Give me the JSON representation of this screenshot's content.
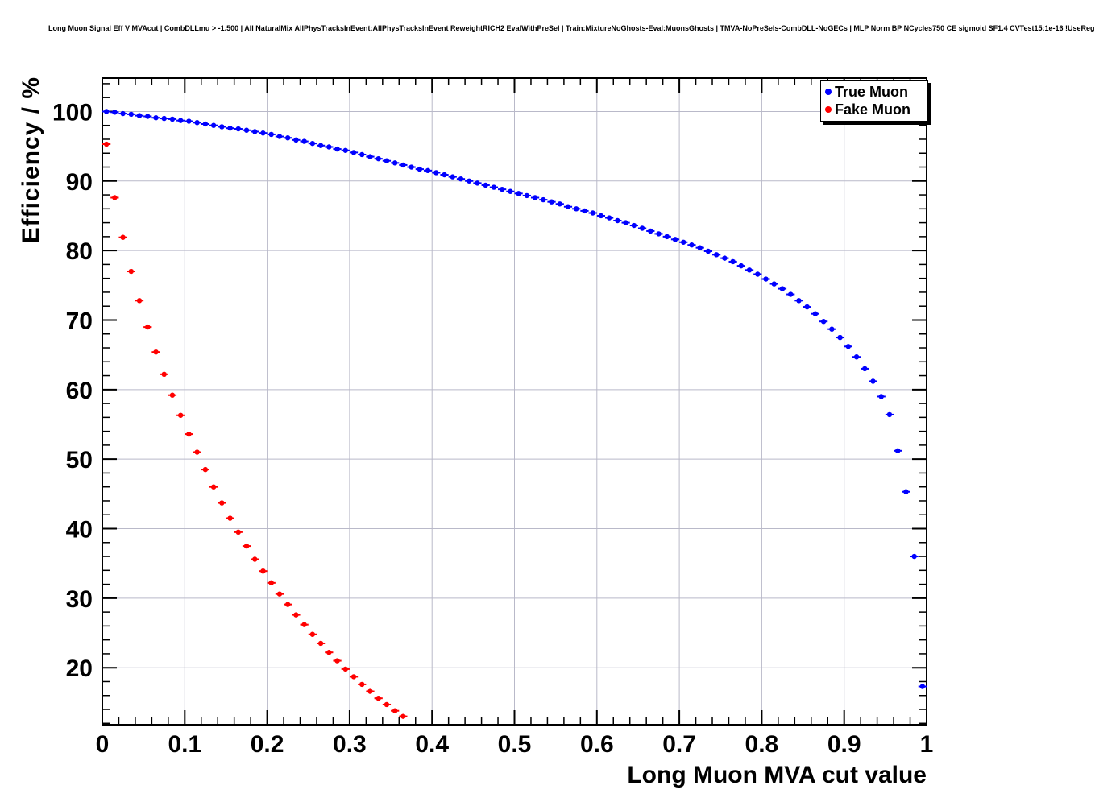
{
  "title": "Long Muon Signal Eff V MVAcut | CombDLLmu > -1.500 | All NaturalMix AllPhysTracksInEvent:AllPhysTracksInEvent ReweightRICH2 EvalWithPreSel | Train:MixtureNoGhosts-Eval:MuonsGhosts | TMVA-NoPreSels-CombDLL-NoGECs | MLP Norm BP NCycles750 CE sigmoid SF1.4 CVTest15:1e-16 !UseReg",
  "chart_data": {
    "type": "scatter",
    "title": "Long Muon Signal Eff V MVAcut",
    "xlabel": "Long Muon MVA cut value",
    "ylabel": "Efficiency / %",
    "xlim": [
      0,
      1
    ],
    "ylim": [
      11.8,
      104.8
    ],
    "grid": true,
    "x_ticks": [
      0,
      0.1,
      0.2,
      0.3,
      0.4,
      0.5,
      0.6,
      0.7,
      0.8,
      0.9,
      1
    ],
    "x_tick_labels": [
      "0",
      "0.1",
      "0.2",
      "0.3",
      "0.4",
      "0.5",
      "0.6",
      "0.7",
      "0.8",
      "0.9",
      "1"
    ],
    "y_ticks": [
      20,
      30,
      40,
      50,
      60,
      70,
      80,
      90,
      100
    ],
    "y_tick_labels": [
      "20",
      "30",
      "40",
      "50",
      "60",
      "70",
      "80",
      "90",
      "100"
    ],
    "x_minor_step": 0.02,
    "y_minor_step": 2,
    "legend": {
      "position": "top-right",
      "entries": [
        {
          "label": "True Muon",
          "color": "#0000ff"
        },
        {
          "label": "Fake Muon",
          "color": "#ff0000"
        }
      ]
    },
    "series": [
      {
        "name": "True Muon",
        "color": "#0000ff",
        "x_half_bin": 0.005,
        "x": [
          0.005,
          0.015,
          0.025,
          0.035,
          0.045,
          0.055,
          0.065,
          0.075,
          0.085,
          0.095,
          0.105,
          0.115,
          0.125,
          0.135,
          0.145,
          0.155,
          0.165,
          0.175,
          0.185,
          0.195,
          0.205,
          0.215,
          0.225,
          0.235,
          0.245,
          0.255,
          0.265,
          0.275,
          0.285,
          0.295,
          0.305,
          0.315,
          0.325,
          0.335,
          0.345,
          0.355,
          0.365,
          0.375,
          0.385,
          0.395,
          0.405,
          0.415,
          0.425,
          0.435,
          0.445,
          0.455,
          0.465,
          0.475,
          0.485,
          0.495,
          0.505,
          0.515,
          0.525,
          0.535,
          0.545,
          0.555,
          0.565,
          0.575,
          0.585,
          0.595,
          0.605,
          0.615,
          0.625,
          0.635,
          0.645,
          0.655,
          0.665,
          0.675,
          0.685,
          0.695,
          0.705,
          0.715,
          0.725,
          0.735,
          0.745,
          0.755,
          0.765,
          0.775,
          0.785,
          0.795,
          0.805,
          0.815,
          0.825,
          0.835,
          0.845,
          0.855,
          0.865,
          0.875,
          0.885,
          0.895,
          0.905,
          0.915,
          0.925,
          0.935,
          0.945,
          0.955,
          0.965,
          0.975,
          0.985,
          0.995
        ],
        "y": [
          100.0,
          99.9,
          99.7,
          99.6,
          99.4,
          99.3,
          99.1,
          99.0,
          98.9,
          98.7,
          98.6,
          98.4,
          98.2,
          98.0,
          97.8,
          97.6,
          97.5,
          97.3,
          97.1,
          96.9,
          96.7,
          96.4,
          96.2,
          95.9,
          95.7,
          95.4,
          95.1,
          94.9,
          94.6,
          94.4,
          94.1,
          93.8,
          93.5,
          93.2,
          92.9,
          92.6,
          92.3,
          92.0,
          91.7,
          91.5,
          91.2,
          90.9,
          90.6,
          90.3,
          90.0,
          89.7,
          89.4,
          89.1,
          88.8,
          88.5,
          88.2,
          87.9,
          87.6,
          87.3,
          87.0,
          86.7,
          86.3,
          86.0,
          85.7,
          85.4,
          85.0,
          84.7,
          84.3,
          84.0,
          83.6,
          83.2,
          82.8,
          82.4,
          82.0,
          81.6,
          81.2,
          80.8,
          80.4,
          79.9,
          79.4,
          78.9,
          78.4,
          77.8,
          77.2,
          76.6,
          75.9,
          75.2,
          74.5,
          73.7,
          72.8,
          71.9,
          70.9,
          69.8,
          68.7,
          67.5,
          66.2,
          64.7,
          63.0,
          61.2,
          59.0,
          56.4,
          51.2,
          45.3,
          36.0,
          17.3
        ]
      },
      {
        "name": "Fake Muon",
        "color": "#ff0000",
        "x_half_bin": 0.005,
        "x": [
          0.005,
          0.015,
          0.025,
          0.035,
          0.045,
          0.055,
          0.065,
          0.075,
          0.085,
          0.095,
          0.105,
          0.115,
          0.125,
          0.135,
          0.145,
          0.155,
          0.165,
          0.175,
          0.185,
          0.195,
          0.205,
          0.215,
          0.225,
          0.235,
          0.245,
          0.255,
          0.265,
          0.275,
          0.285,
          0.295,
          0.305,
          0.315,
          0.325,
          0.335,
          0.345,
          0.355,
          0.365
        ],
        "y": [
          95.3,
          87.6,
          81.9,
          77.0,
          72.8,
          69.0,
          65.4,
          62.2,
          59.2,
          56.3,
          53.6,
          51.0,
          48.5,
          46.0,
          43.7,
          41.5,
          39.5,
          37.5,
          35.6,
          33.9,
          32.2,
          30.6,
          29.1,
          27.6,
          26.2,
          24.8,
          23.5,
          22.2,
          21.0,
          19.8,
          18.7,
          17.6,
          16.6,
          15.6,
          14.7,
          13.8,
          13.0
        ]
      }
    ]
  }
}
